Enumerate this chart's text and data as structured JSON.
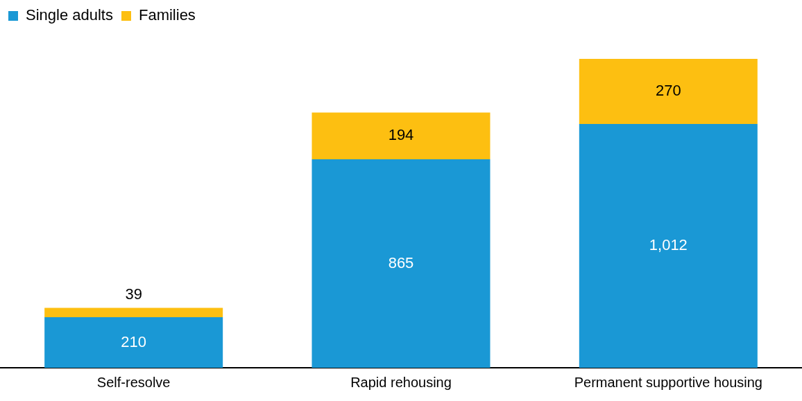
{
  "chart_data": {
    "type": "bar",
    "stacked": true,
    "categories": [
      "Self-resolve",
      "Rapid rehousing",
      "Permanent supportive housing"
    ],
    "series": [
      {
        "name": "Single adults",
        "color": "#1a98d5",
        "values": [
          210,
          865,
          1012
        ],
        "value_labels": [
          "210",
          "865",
          "1,012"
        ]
      },
      {
        "name": "Families",
        "color": "#fdbf11",
        "values": [
          39,
          194,
          270
        ],
        "value_labels": [
          "39",
          "194",
          "270"
        ]
      }
    ],
    "legend": "top left",
    "grid": false,
    "tick_labels": "x"
  }
}
